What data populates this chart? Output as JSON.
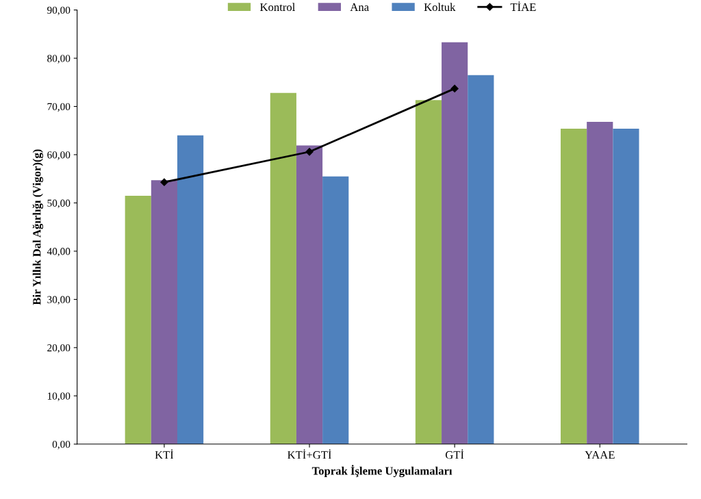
{
  "chart_data": {
    "type": "bar",
    "xlabel": "Toprak İşleme Uygulamaları",
    "ylabel": "Bir Yıllık Dal Ağırlığı (Vigor)(g)",
    "categories": [
      "KTİ",
      "KTİ+GTİ",
      "GTİ",
      "YAAE"
    ],
    "series": [
      {
        "name": "Kontrol",
        "color": "#9bbb59",
        "values": [
          51.5,
          72.8,
          71.3,
          65.4
        ]
      },
      {
        "name": "Ana",
        "color": "#8064a2",
        "values": [
          54.7,
          61.9,
          83.3,
          66.8
        ]
      },
      {
        "name": "Koltuk",
        "color": "#4f81bd",
        "values": [
          64.0,
          55.5,
          76.5,
          65.4
        ]
      },
      {
        "name": "TİAE",
        "type": "line",
        "color": "#000000",
        "marker": "diamond",
        "values": [
          54.3,
          60.6,
          73.7,
          null
        ]
      }
    ],
    "ylim": [
      0,
      90
    ],
    "yticks": [
      {
        "value": 0,
        "label": "0,00"
      },
      {
        "value": 10,
        "label": "10,00"
      },
      {
        "value": 20,
        "label": "20,00"
      },
      {
        "value": 30,
        "label": "30,00"
      },
      {
        "value": 40,
        "label": "40,00"
      },
      {
        "value": 50,
        "label": "50,00"
      },
      {
        "value": 60,
        "label": "60,00"
      },
      {
        "value": 70,
        "label": "70,00"
      },
      {
        "value": 80,
        "label": "80,00"
      },
      {
        "value": 90,
        "label": "90,00"
      }
    ],
    "grid": false,
    "legend": "top"
  }
}
